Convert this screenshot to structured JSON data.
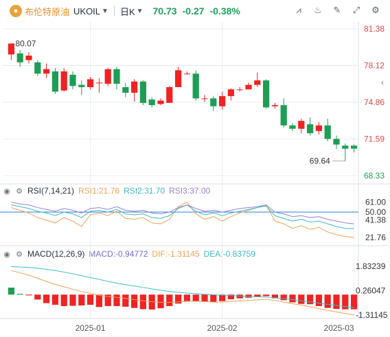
{
  "header": {
    "instrument_name": "布伦特原油",
    "symbol": "UKOIL",
    "period": "日K",
    "price": "70.73",
    "change": "-0.27",
    "change_pct": "-0.38%"
  },
  "icons": [
    "logo-icon",
    "compare-icon",
    "indicator-icon",
    "draw-icon",
    "fullscreen-icon",
    "settings-icon",
    "eye-icon",
    "gear-icon",
    "collapse-icon"
  ],
  "colors": {
    "up": "#ef2323",
    "down": "#1e9e55",
    "accent": "#e8902b",
    "grid": "#e8ecf0"
  },
  "rsi": {
    "title": "RSI(7,14,21)",
    "rsi1": "RSI1:21.76",
    "rsi2": "RSI2:31.70",
    "rsi3": "RSI3:37.00"
  },
  "macd": {
    "title": "MACD(12,26,9)",
    "macd": "MACD:-0.94772",
    "dif": "DIF:-1.31145",
    "dea": "DEA:-0.83759"
  },
  "chart_data": [
    {
      "type": "candlestick",
      "title": "UKOIL 日K",
      "y_ticks": [
        "81.38",
        "78.12",
        "74.86",
        "71.59",
        "68.33"
      ],
      "ylim": [
        68.33,
        81.38
      ],
      "annotations": [
        {
          "label": "80.07",
          "value": 80.07
        },
        {
          "label": "69.64",
          "value": 69.64
        }
      ],
      "x_ticks": [
        "2025-01",
        "2025-02",
        "2025-03"
      ],
      "candles": [
        [
          79.1,
          80.07,
          80.07,
          78.6
        ],
        [
          79.2,
          78.4,
          79.5,
          78.0
        ],
        [
          78.6,
          79.0,
          79.3,
          78.3
        ],
        [
          78.4,
          77.4,
          78.6,
          77.2
        ],
        [
          77.4,
          77.8,
          78.3,
          77.0
        ],
        [
          77.6,
          75.8,
          77.9,
          75.6
        ],
        [
          75.9,
          77.6,
          77.9,
          75.8
        ],
        [
          77.3,
          76.3,
          77.6,
          76.0
        ],
        [
          76.4,
          76.2,
          76.8,
          75.5
        ],
        [
          76.2,
          76.9,
          77.1,
          76.0
        ],
        [
          76.6,
          76.6,
          77.0,
          75.7
        ],
        [
          76.5,
          77.8,
          77.9,
          76.3
        ],
        [
          77.8,
          76.5,
          78.0,
          76.0
        ],
        [
          76.2,
          75.7,
          76.6,
          75.3
        ],
        [
          75.7,
          76.7,
          76.9,
          74.9
        ],
        [
          76.7,
          74.8,
          76.8,
          74.6
        ],
        [
          75.1,
          74.6,
          75.3,
          74.4
        ],
        [
          74.7,
          75.0,
          75.2,
          74.6
        ],
        [
          74.8,
          76.2,
          76.3,
          74.8
        ],
        [
          76.2,
          77.7,
          78.0,
          76.2
        ],
        [
          77.4,
          77.4,
          77.6,
          77.3
        ],
        [
          77.4,
          75.2,
          77.7,
          75.0
        ],
        [
          75.2,
          75.2,
          75.5,
          74.9
        ],
        [
          75.2,
          74.5,
          75.4,
          74.1
        ],
        [
          74.5,
          75.4,
          75.8,
          74.2
        ],
        [
          75.4,
          76.0,
          76.1,
          75.0
        ],
        [
          76.0,
          76.0,
          76.2,
          75.8
        ],
        [
          76.0,
          76.4,
          76.6,
          76.0
        ],
        [
          76.4,
          76.8,
          77.5,
          76.2
        ],
        [
          76.8,
          74.4,
          76.9,
          74.3
        ],
        [
          74.5,
          74.6,
          74.8,
          74.3
        ],
        [
          74.6,
          72.8,
          75.2,
          72.6
        ],
        [
          72.8,
          72.5,
          73.0,
          72.3
        ],
        [
          72.5,
          73.2,
          73.4,
          72.1
        ],
        [
          72.9,
          72.1,
          73.5,
          71.9
        ],
        [
          72.3,
          72.8,
          73.1,
          72.0
        ],
        [
          72.8,
          71.6,
          73.4,
          71.4
        ],
        [
          71.6,
          71.1,
          71.9,
          70.7
        ],
        [
          71.0,
          70.73,
          71.2,
          69.64
        ],
        [
          71.0,
          70.73,
          71.1,
          70.4
        ]
      ]
    },
    {
      "type": "line",
      "title": "RSI(7,14,21)",
      "y_ticks": [
        "61.00",
        "50.00",
        "41.38",
        "21.76"
      ],
      "series": [
        {
          "name": "RSI1",
          "values": [
            55,
            52,
            49,
            44,
            41,
            38,
            44,
            40,
            34,
            47,
            49,
            46,
            51,
            43,
            42,
            44,
            38,
            37,
            42,
            56,
            61,
            48,
            42,
            45,
            40,
            45,
            49,
            52,
            55,
            58,
            40,
            37,
            32,
            35,
            31,
            33,
            28,
            25,
            23,
            21.76
          ]
        },
        {
          "name": "RSI2",
          "values": [
            58,
            56,
            54,
            51,
            49,
            46,
            50,
            48,
            44,
            51,
            52,
            50,
            53,
            48,
            47,
            48,
            44,
            43,
            46,
            54,
            58,
            51,
            47,
            49,
            46,
            49,
            51,
            53,
            55,
            57,
            46,
            43,
            40,
            42,
            39,
            40,
            37,
            34,
            32,
            31.7
          ]
        },
        {
          "name": "RSI3",
          "values": [
            61,
            59,
            58,
            55,
            53,
            51,
            54,
            52,
            49,
            54,
            55,
            53,
            56,
            52,
            51,
            52,
            49,
            48,
            50,
            55,
            58,
            54,
            51,
            52,
            50,
            52,
            54,
            55,
            56,
            58,
            50,
            48,
            45,
            46,
            44,
            45,
            42,
            40,
            38,
            37.0
          ]
        }
      ],
      "ref_line": 50.0
    },
    {
      "type": "bar+line",
      "title": "MACD(12,26,9)",
      "y_ticks": [
        "1.83239",
        "0.26047",
        "-1.31145"
      ],
      "series": [
        {
          "name": "MACD",
          "values": [
            0.45,
            0.05,
            -0.05,
            -0.32,
            -0.55,
            -0.66,
            -0.74,
            -0.72,
            -0.7,
            -0.66,
            -0.8,
            -0.74,
            -0.74,
            -0.78,
            -0.86,
            -0.94,
            -0.96,
            -0.88,
            -0.74,
            -0.58,
            -0.44,
            -0.42,
            -0.46,
            -0.48,
            -0.42,
            -0.3,
            -0.24,
            -0.2,
            -0.14,
            -0.1,
            -0.24,
            -0.36,
            -0.5,
            -0.6,
            -0.62,
            -0.74,
            -0.86,
            -0.92,
            -0.95,
            -0.94772
          ]
        },
        {
          "name": "DIF",
          "values": [
            1.55,
            1.4,
            1.25,
            1.05,
            0.85,
            0.65,
            0.5,
            0.35,
            0.2,
            0.08,
            -0.05,
            -0.12,
            -0.18,
            -0.25,
            -0.32,
            -0.4,
            -0.46,
            -0.5,
            -0.5,
            -0.47,
            -0.43,
            -0.43,
            -0.45,
            -0.48,
            -0.48,
            -0.44,
            -0.41,
            -0.38,
            -0.34,
            -0.3,
            -0.38,
            -0.48,
            -0.58,
            -0.68,
            -0.78,
            -0.9,
            -1.02,
            -1.12,
            -1.22,
            -1.31145
          ]
        },
        {
          "name": "DEA",
          "values": [
            1.8,
            1.78,
            1.75,
            1.7,
            1.63,
            1.55,
            1.45,
            1.34,
            1.22,
            1.1,
            0.98,
            0.85,
            0.74,
            0.64,
            0.55,
            0.46,
            0.37,
            0.28,
            0.21,
            0.15,
            0.1,
            0.06,
            0.02,
            -0.01,
            -0.04,
            -0.06,
            -0.09,
            -0.12,
            -0.14,
            -0.16,
            -0.2,
            -0.26,
            -0.33,
            -0.4,
            -0.47,
            -0.55,
            -0.63,
            -0.7,
            -0.77,
            -0.83759
          ]
        }
      ]
    }
  ]
}
